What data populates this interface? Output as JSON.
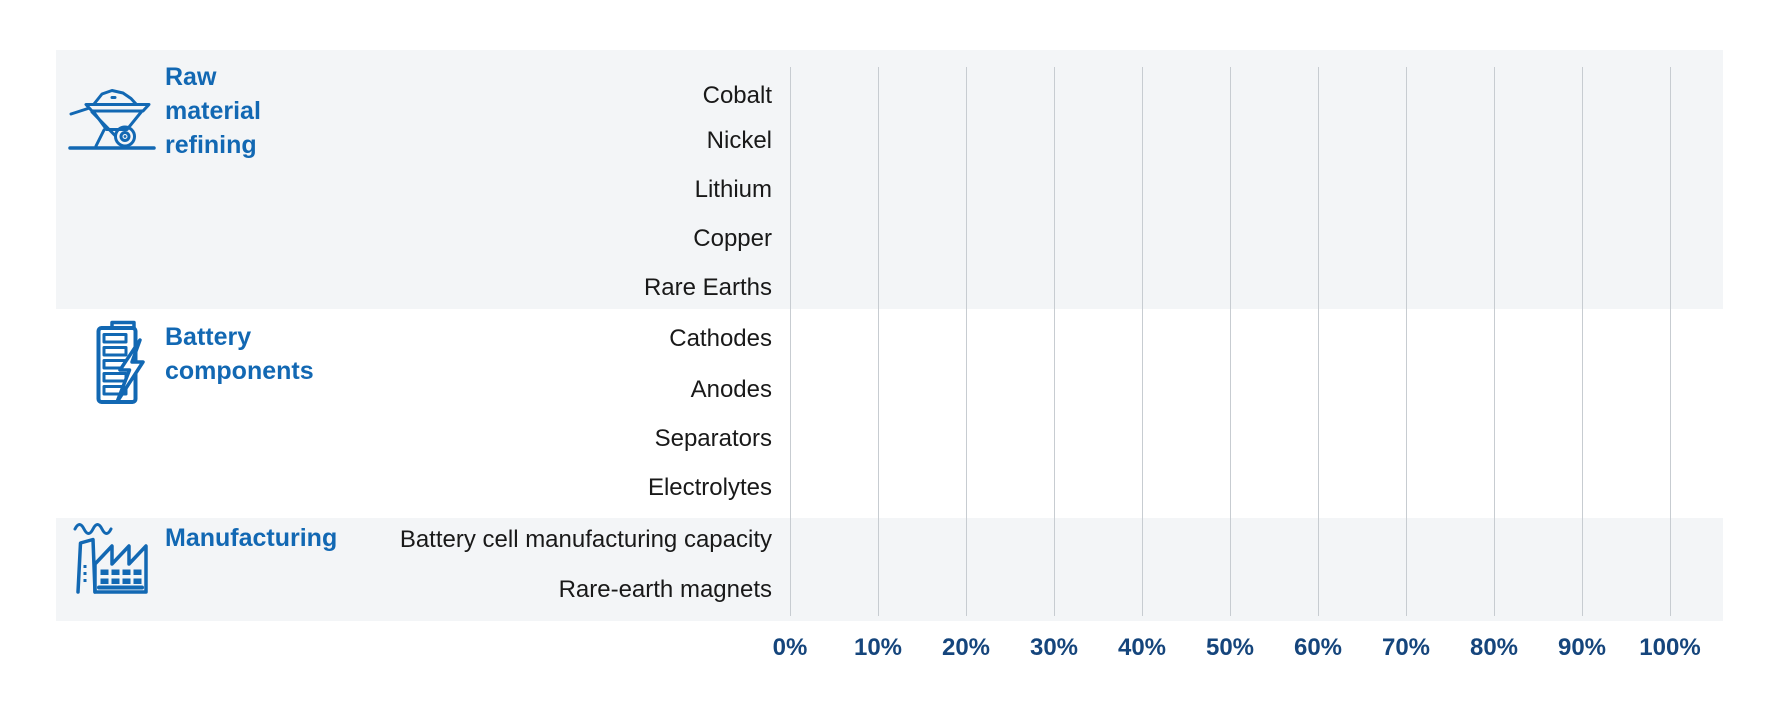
{
  "chart_data": {
    "type": "bar",
    "orientation": "horizontal",
    "title": "",
    "sections": [
      {
        "label": "Raw material\nrefining",
        "icon": "wheelbarrow-icon",
        "rows": [
          "Cobalt",
          "Nickel",
          "Lithium",
          "Copper",
          "Rare Earths"
        ]
      },
      {
        "label": "Battery\ncomponents",
        "icon": "battery-icon",
        "rows": [
          "Cathodes",
          "Anodes",
          "Separators",
          "Electrolytes"
        ]
      },
      {
        "label": "Manufacturing",
        "icon": "factory-icon",
        "rows": [
          "Battery cell manufacturing capacity",
          "Rare-earth magnets"
        ]
      }
    ],
    "x_axis": {
      "ticks": [
        "0%",
        "10%",
        "20%",
        "30%",
        "40%",
        "50%",
        "60%",
        "70%",
        "80%",
        "90%",
        "100%"
      ],
      "min": 0,
      "max": 100,
      "unit": "%"
    },
    "series": [],
    "gridlines": "vertical",
    "legend": "none",
    "colors": {
      "accent_blue": "#1268b3",
      "axis_label_navy": "#15457c",
      "band_gray": "#f3f5f7",
      "gridline_gray": "#c7ccd1",
      "row_label_text": "#191919",
      "background": "#ffffff"
    }
  }
}
